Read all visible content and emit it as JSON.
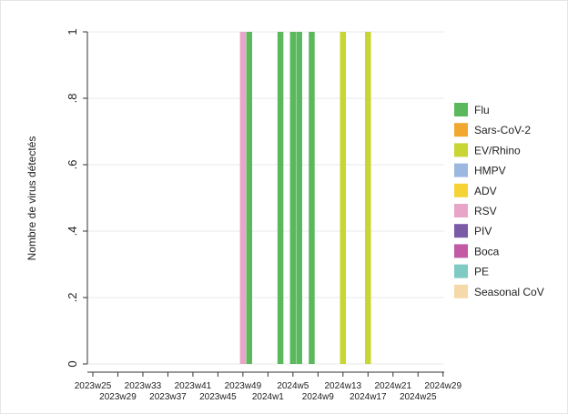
{
  "chart_data": {
    "type": "bar",
    "ylabel": "Nombre de virus détectés",
    "ylim": [
      0,
      1
    ],
    "y_ticks": [
      "0",
      ".2",
      ".4",
      ".6",
      ".8",
      "1"
    ],
    "y_tick_values": [
      0,
      0.2,
      0.4,
      0.6,
      0.8,
      1
    ],
    "grid": true,
    "legend_position": "right",
    "x_axis_labels": [
      "2023w25",
      "2023w29",
      "2023w33",
      "2023w37",
      "2023w41",
      "2023w45",
      "2023w49",
      "2024w1",
      "2024w5",
      "2024w9",
      "2024w13",
      "2024w17",
      "2024w21",
      "2024w25",
      "2024w29"
    ],
    "series": [
      {
        "name": "Flu",
        "color": "#5cb85c",
        "weeks": [
          "2023w50",
          "2024w3",
          "2024w5",
          "2024w6",
          "2024w8"
        ],
        "values": [
          1,
          1,
          1,
          1,
          1
        ]
      },
      {
        "name": "Sars-CoV-2",
        "color": "#f0a830",
        "weeks": [],
        "values": []
      },
      {
        "name": "EV/Rhino",
        "color": "#c8d633",
        "weeks": [
          "2024w13",
          "2024w17"
        ],
        "values": [
          1,
          1
        ]
      },
      {
        "name": "HMPV",
        "color": "#9db8e0",
        "weeks": [],
        "values": []
      },
      {
        "name": "ADV",
        "color": "#f5d335",
        "weeks": [],
        "values": []
      },
      {
        "name": "RSV",
        "color": "#e7a6c8",
        "weeks": [
          "2023w49"
        ],
        "values": [
          1
        ]
      },
      {
        "name": "PIV",
        "color": "#7b5aa6",
        "weeks": [],
        "values": []
      },
      {
        "name": "Boca",
        "color": "#c25aa6",
        "weeks": [],
        "values": []
      },
      {
        "name": "PE",
        "color": "#7fcac3",
        "weeks": [],
        "values": []
      },
      {
        "name": "Seasonal CoV",
        "color": "#f5d9a8",
        "weeks": [],
        "values": []
      }
    ]
  }
}
